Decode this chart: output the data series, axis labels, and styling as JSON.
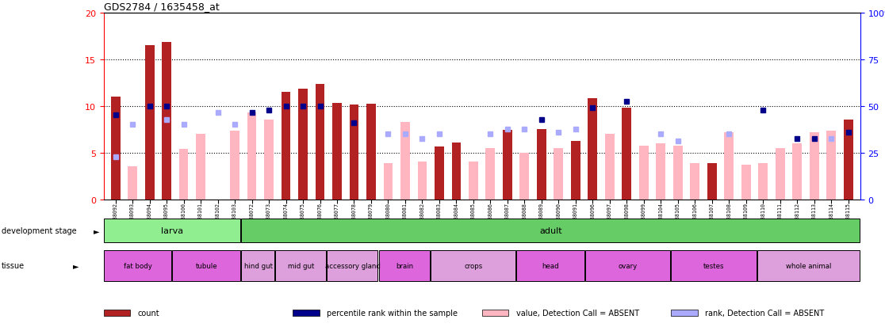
{
  "title": "GDS2784 / 1635458_at",
  "samples": [
    "GSM188092",
    "GSM188093",
    "GSM188094",
    "GSM188095",
    "GSM188100",
    "GSM188101",
    "GSM188102",
    "GSM188103",
    "GSM188072",
    "GSM188073",
    "GSM188074",
    "GSM188075",
    "GSM188076",
    "GSM188077",
    "GSM188078",
    "GSM188079",
    "GSM188080",
    "GSM188081",
    "GSM188082",
    "GSM188083",
    "GSM188084",
    "GSM188085",
    "GSM188086",
    "GSM188087",
    "GSM188088",
    "GSM188089",
    "GSM188090",
    "GSM188091",
    "GSM188096",
    "GSM188097",
    "GSM188098",
    "GSM188099",
    "GSM188104",
    "GSM188105",
    "GSM188106",
    "GSM188107",
    "GSM188108",
    "GSM188109",
    "GSM188110",
    "GSM188111",
    "GSM188112",
    "GSM188113",
    "GSM188114",
    "GSM188115"
  ],
  "count": [
    11.0,
    null,
    16.5,
    16.8,
    null,
    null,
    null,
    null,
    null,
    null,
    11.5,
    11.8,
    12.3,
    10.3,
    10.1,
    10.2,
    null,
    null,
    null,
    5.6,
    6.1,
    null,
    null,
    7.4,
    null,
    7.5,
    null,
    6.2,
    10.8,
    null,
    9.8,
    null,
    null,
    null,
    null,
    3.9,
    null,
    null,
    null,
    null,
    null,
    null,
    null,
    8.5
  ],
  "count_absent": [
    null,
    3.5,
    null,
    null,
    5.4,
    7.0,
    null,
    7.3,
    9.3,
    8.5,
    null,
    null,
    null,
    null,
    null,
    9.6,
    3.9,
    8.3,
    4.0,
    null,
    null,
    4.0,
    5.5,
    null,
    5.0,
    null,
    5.5,
    5.8,
    null,
    7.0,
    null,
    5.7,
    6.0,
    5.7,
    3.9,
    null,
    7.2,
    3.7,
    3.9,
    5.5,
    6.0,
    7.2,
    7.3,
    null
  ],
  "rank": [
    9.0,
    null,
    10.0,
    10.0,
    null,
    null,
    null,
    null,
    9.3,
    9.5,
    10.0,
    10.0,
    10.0,
    null,
    8.2,
    null,
    null,
    null,
    null,
    null,
    null,
    null,
    null,
    null,
    null,
    8.5,
    null,
    null,
    9.8,
    null,
    10.5,
    null,
    null,
    null,
    null,
    null,
    null,
    null,
    9.5,
    null,
    6.5,
    6.5,
    null,
    7.2
  ],
  "rank_absent": [
    4.5,
    8.0,
    null,
    8.5,
    8.0,
    null,
    9.3,
    8.0,
    null,
    null,
    null,
    null,
    null,
    null,
    null,
    null,
    7.0,
    7.0,
    6.5,
    7.0,
    null,
    null,
    7.0,
    7.5,
    7.5,
    null,
    7.2,
    7.5,
    null,
    null,
    null,
    null,
    7.0,
    6.2,
    null,
    null,
    7.0,
    null,
    null,
    null,
    null,
    null,
    6.5,
    null
  ],
  "larva_range": [
    0,
    8
  ],
  "adult_range": [
    8,
    44
  ],
  "tissues": [
    {
      "label": "fat body",
      "start": 0,
      "end": 4
    },
    {
      "label": "tubule",
      "start": 4,
      "end": 8
    },
    {
      "label": "hind gut",
      "start": 8,
      "end": 10
    },
    {
      "label": "mid gut",
      "start": 10,
      "end": 13
    },
    {
      "label": "accessory gland",
      "start": 13,
      "end": 16
    },
    {
      "label": "brain",
      "start": 16,
      "end": 19
    },
    {
      "label": "crops",
      "start": 19,
      "end": 24
    },
    {
      "label": "head",
      "start": 24,
      "end": 28
    },
    {
      "label": "ovary",
      "start": 28,
      "end": 33
    },
    {
      "label": "testes",
      "start": 33,
      "end": 38
    },
    {
      "label": "whole animal",
      "start": 38,
      "end": 44
    }
  ],
  "tissue_colors": [
    "#dd66dd",
    "#dd66dd",
    "#dda0dd",
    "#dda0dd",
    "#dda0dd",
    "#dd66dd",
    "#dda0dd",
    "#dd66dd",
    "#dd66dd",
    "#dd66dd",
    "#dda0dd"
  ],
  "larva_color": "#90ee90",
  "adult_color": "#66cc66",
  "ylim_left": [
    0,
    20
  ],
  "ylim_right": [
    0,
    100
  ],
  "yticks_left": [
    0,
    5,
    10,
    15,
    20
  ],
  "yticks_right": [
    0,
    25,
    50,
    75,
    100
  ],
  "ytick_labels_right": [
    "0",
    "25",
    "50",
    "75",
    "100%"
  ],
  "bar_color": "#b22222",
  "bar_absent_color": "#ffb6c1",
  "rank_color": "#00008b",
  "rank_absent_color": "#aaaaff",
  "legend": [
    {
      "color": "#b22222",
      "label": "count"
    },
    {
      "color": "#00008b",
      "label": "percentile rank within the sample"
    },
    {
      "color": "#ffb6c1",
      "label": "value, Detection Call = ABSENT"
    },
    {
      "color": "#aaaaff",
      "label": "rank, Detection Call = ABSENT"
    }
  ]
}
